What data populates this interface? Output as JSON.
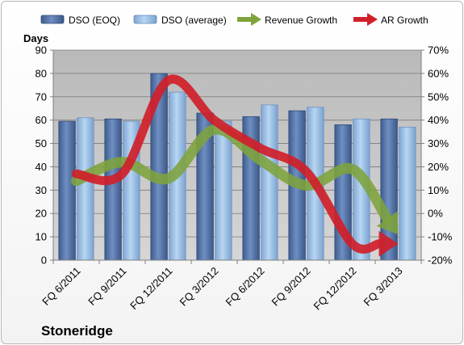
{
  "chart_data": {
    "type": "bar",
    "company": "Stoneridge",
    "y_axis_label": "Days",
    "categories": [
      "FQ 6/2011",
      "FQ 9/2011",
      "FQ 12/2011",
      "FQ 3/2012",
      "FQ 6/2012",
      "FQ 9/2012",
      "FQ 12/2012",
      "FQ 3/2013"
    ],
    "ylim": [
      0,
      90
    ],
    "y_ticks": [
      "0",
      "10",
      "20",
      "30",
      "40",
      "50",
      "60",
      "70",
      "80",
      "90"
    ],
    "y2lim": [
      -20,
      70
    ],
    "y2_ticks": [
      "-20%",
      "-10%",
      "0%",
      "10%",
      "20%",
      "30%",
      "40%",
      "50%",
      "60%",
      "70%"
    ],
    "grid": true,
    "legend_position": "top",
    "series": [
      {
        "name": "DSO (EOQ)",
        "type": "bar",
        "axis": "left",
        "color": "#4a6aa0",
        "values": [
          59.5,
          60.5,
          80,
          63,
          61.5,
          64,
          58,
          60.5
        ]
      },
      {
        "name": "DSO (average)",
        "type": "bar",
        "axis": "left",
        "color": "#8fb8e2",
        "values": [
          61,
          59.5,
          72,
          59.5,
          66.5,
          65.5,
          60.5,
          57
        ]
      },
      {
        "name": "Revenue Growth",
        "type": "line",
        "axis": "right",
        "color": "#7ea33c",
        "unit": "%",
        "values": [
          14,
          22,
          15,
          36,
          23,
          12,
          19,
          -9
        ]
      },
      {
        "name": "AR Growth",
        "type": "line",
        "axis": "right",
        "color": "#d0202a",
        "unit": "%",
        "values": [
          17,
          17,
          57,
          40,
          28,
          18,
          -13,
          -13
        ]
      }
    ]
  }
}
